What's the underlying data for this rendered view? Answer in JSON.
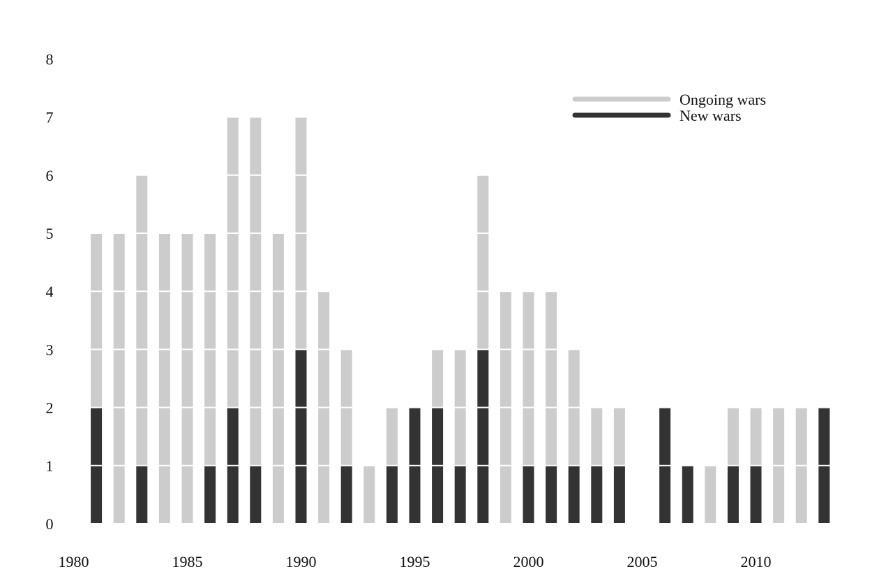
{
  "chart_data": {
    "type": "bar",
    "stacked": true,
    "unit_segments": true,
    "x": [
      1981,
      1982,
      1983,
      1984,
      1985,
      1986,
      1987,
      1988,
      1989,
      1990,
      1991,
      1992,
      1993,
      1994,
      1995,
      1996,
      1997,
      1998,
      1999,
      2000,
      2001,
      2002,
      2003,
      2004,
      2005,
      2006,
      2007,
      2008,
      2009,
      2010,
      2011,
      2012,
      2013
    ],
    "series": [
      {
        "name": "New wars",
        "color": "#333333",
        "values": [
          2,
          0,
          1,
          0,
          0,
          1,
          2,
          1,
          0,
          3,
          0,
          1,
          0,
          1,
          2,
          2,
          1,
          3,
          0,
          1,
          1,
          1,
          1,
          1,
          0,
          2,
          1,
          0,
          1,
          1,
          0,
          0,
          2
        ]
      },
      {
        "name": "Ongoing wars",
        "color": "#cccccc",
        "values": [
          3,
          5,
          5,
          5,
          5,
          4,
          5,
          6,
          5,
          4,
          4,
          2,
          1,
          1,
          0,
          1,
          2,
          3,
          4,
          3,
          3,
          2,
          1,
          1,
          0,
          0,
          0,
          1,
          1,
          1,
          2,
          2,
          0
        ]
      }
    ],
    "xticks": [
      "1980",
      "1985",
      "1990",
      "1995",
      "2000",
      "2005",
      "2010"
    ],
    "yticks": [
      "0",
      "1",
      "2",
      "3",
      "4",
      "5",
      "6",
      "7",
      "8"
    ],
    "xlim": [
      1980,
      2013
    ],
    "ylim": [
      0,
      8
    ],
    "grid": false,
    "legend": {
      "position": "top-right",
      "entries": [
        {
          "label": "Ongoing wars",
          "color": "#cccccc"
        },
        {
          "label": "New wars",
          "color": "#333333"
        }
      ]
    }
  }
}
